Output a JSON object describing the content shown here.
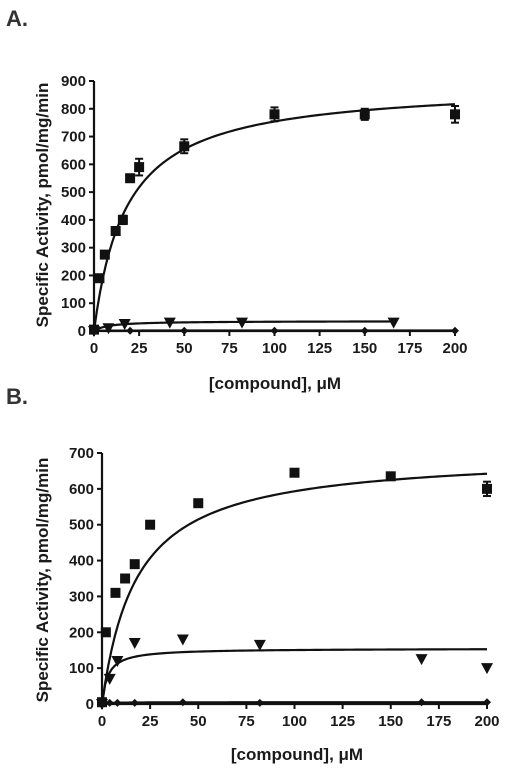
{
  "chart_data": [
    {
      "type": "scatter",
      "panel_label": "A.",
      "xlabel": "[compound], μM",
      "ylabel": "Specific Activity, pmol/mg/min",
      "xlim": [
        0,
        200
      ],
      "ylim": [
        0,
        900
      ],
      "xticks": [
        0,
        25,
        50,
        75,
        100,
        125,
        150,
        175,
        200
      ],
      "yticks": [
        0,
        100,
        200,
        300,
        400,
        500,
        600,
        700,
        800,
        900
      ],
      "series": [
        {
          "marker": "square",
          "points": [
            {
              "x": 0,
              "y": 5,
              "err": 0
            },
            {
              "x": 3,
              "y": 190,
              "err": 0
            },
            {
              "x": 6,
              "y": 275,
              "err": 0
            },
            {
              "x": 12,
              "y": 360,
              "err": 0
            },
            {
              "x": 16,
              "y": 400,
              "err": 15
            },
            {
              "x": 20,
              "y": 550,
              "err": 0
            },
            {
              "x": 25,
              "y": 590,
              "err": 30
            },
            {
              "x": 50,
              "y": 665,
              "err": 25
            },
            {
              "x": 100,
              "y": 780,
              "err": 25
            },
            {
              "x": 150,
              "y": 780,
              "err": 20
            },
            {
              "x": 200,
              "y": 780,
              "err": 30
            }
          ],
          "fit": {
            "vmax": 890,
            "km": 18
          }
        },
        {
          "marker": "triangle-down",
          "points": [
            {
              "x": 0,
              "y": 0
            },
            {
              "x": 8,
              "y": 10
            },
            {
              "x": 17,
              "y": 25
            },
            {
              "x": 42,
              "y": 30
            },
            {
              "x": 82,
              "y": 30
            },
            {
              "x": 166,
              "y": 30
            }
          ],
          "fit": {
            "vmax": 36,
            "km": 8,
            "xmax": 167
          }
        },
        {
          "marker": "diamond",
          "points": [
            {
              "x": 0,
              "y": 0
            },
            {
              "x": 20,
              "y": 1
            },
            {
              "x": 50,
              "y": 1
            },
            {
              "x": 100,
              "y": 1
            },
            {
              "x": 150,
              "y": 1
            },
            {
              "x": 200,
              "y": 1
            }
          ],
          "fit": {
            "vmax": 2,
            "km": 5
          }
        }
      ]
    },
    {
      "type": "scatter",
      "panel_label": "B.",
      "xlabel": "[compound], μM",
      "ylabel": "Specific Activity, pmol/mg/min",
      "xlim": [
        0,
        200
      ],
      "ylim": [
        0,
        700
      ],
      "xticks": [
        0,
        25,
        50,
        75,
        100,
        125,
        150,
        175,
        200
      ],
      "yticks": [
        0,
        100,
        200,
        300,
        400,
        500,
        600,
        700
      ],
      "series": [
        {
          "marker": "square",
          "points": [
            {
              "x": 0,
              "y": 5,
              "err": 0
            },
            {
              "x": 2,
              "y": 200,
              "err": 0
            },
            {
              "x": 7,
              "y": 310,
              "err": 0
            },
            {
              "x": 12,
              "y": 350,
              "err": 0
            },
            {
              "x": 17,
              "y": 390,
              "err": 0
            },
            {
              "x": 25,
              "y": 500,
              "err": 0
            },
            {
              "x": 50,
              "y": 560,
              "err": 0
            },
            {
              "x": 100,
              "y": 645,
              "err": 0
            },
            {
              "x": 150,
              "y": 635,
              "err": 0
            },
            {
              "x": 200,
              "y": 600,
              "err": 20
            }
          ],
          "fit": {
            "vmax": 700,
            "km": 18
          }
        },
        {
          "marker": "triangle-down",
          "points": [
            {
              "x": 0,
              "y": 0
            },
            {
              "x": 4,
              "y": 70
            },
            {
              "x": 8,
              "y": 120
            },
            {
              "x": 17,
              "y": 170
            },
            {
              "x": 42,
              "y": 180
            },
            {
              "x": 82,
              "y": 165
            },
            {
              "x": 166,
              "y": 125
            },
            {
              "x": 200,
              "y": 100
            }
          ],
          "fit": {
            "vmax": 155,
            "km": 3
          }
        },
        {
          "marker": "diamond",
          "points": [
            {
              "x": 0,
              "y": 0
            },
            {
              "x": 4,
              "y": 3
            },
            {
              "x": 8,
              "y": 3
            },
            {
              "x": 17,
              "y": 3
            },
            {
              "x": 42,
              "y": 5
            },
            {
              "x": 82,
              "y": 3
            },
            {
              "x": 166,
              "y": 5
            },
            {
              "x": 200,
              "y": 5
            }
          ],
          "fit": {
            "vmax": 5,
            "km": 3
          }
        }
      ]
    }
  ]
}
